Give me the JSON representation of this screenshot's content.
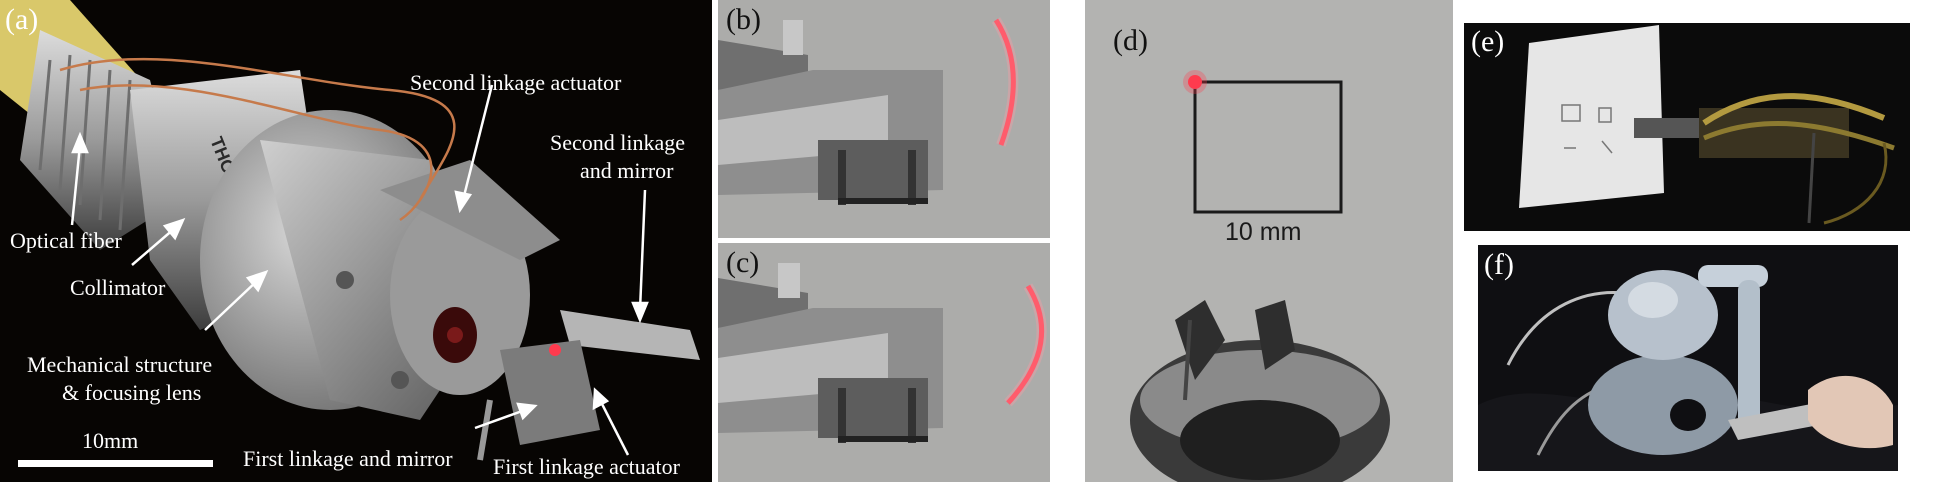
{
  "panels": {
    "a": {
      "label": "(a)",
      "annotations": {
        "optical_fiber": "Optical fiber",
        "collimator": "Collimator",
        "mechanical": "Mechanical structure\n& focusing lens",
        "mechanical_line1": "Mechanical structure",
        "mechanical_line2": "& focusing lens",
        "second_actuator": "Second linkage actuator",
        "second_linkage_line1": "Second linkage",
        "second_linkage_line2": "and mirror",
        "first_linkage": "First linkage and mirror",
        "first_actuator": "First linkage actuator",
        "scale": "10mm"
      },
      "brand_text": "THORLABS"
    },
    "b": {
      "label": "(b)"
    },
    "c": {
      "label": "(c)"
    },
    "d": {
      "label": "(d)",
      "scale": "10 mm"
    },
    "e": {
      "label": "(e)"
    },
    "f": {
      "label": "(f)"
    }
  },
  "colors": {
    "laser": "#ff3b4e",
    "background_dark": "#0a0705",
    "metal": "#b9b9b9",
    "fiber_yellow": "#e6d27a",
    "gray_wall": "#a7a7a5"
  }
}
